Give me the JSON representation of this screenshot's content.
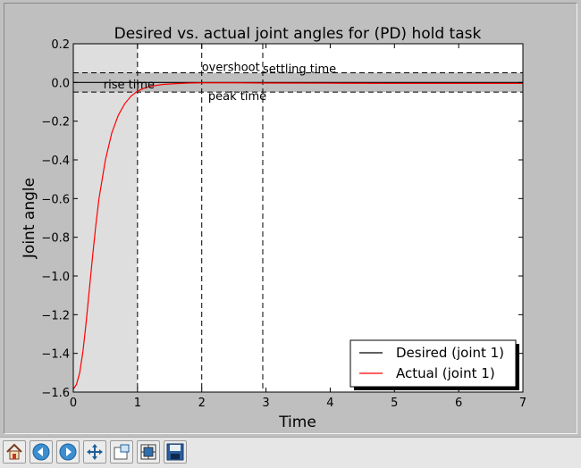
{
  "chart_data": {
    "type": "line",
    "title": "Desired vs. actual joint angles for (PD) hold task",
    "xlabel": "Time",
    "ylabel": "Joint angle",
    "xlim": [
      0,
      7
    ],
    "ylim": [
      -1.6,
      0.2
    ],
    "xticks": [
      "0",
      "1",
      "2",
      "3",
      "4",
      "5",
      "6",
      "7"
    ],
    "yticks": [
      "0.2",
      "0.0",
      "−0.2",
      "−0.4",
      "−0.6",
      "−0.8",
      "−1.0",
      "−1.2",
      "−1.4",
      "−1.6"
    ],
    "grid": false,
    "legend_position": "lower-right",
    "series": [
      {
        "name": "Desired (joint 1)",
        "color": "#000000",
        "x": [
          0,
          7
        ],
        "y": [
          0.0,
          0.0
        ]
      },
      {
        "name": "Actual (joint 1)",
        "color": "#ff0000",
        "x": [
          0,
          0.05,
          0.1,
          0.15,
          0.2,
          0.25,
          0.3,
          0.35,
          0.4,
          0.5,
          0.6,
          0.7,
          0.8,
          0.9,
          1.0,
          1.1,
          1.2,
          1.4,
          1.6,
          1.8,
          2.0,
          2.5,
          3.0,
          4.0,
          5.0,
          6.0,
          7.0
        ],
        "y": [
          -1.585,
          -1.56,
          -1.5,
          -1.39,
          -1.24,
          -1.07,
          -0.9,
          -0.74,
          -0.6,
          -0.4,
          -0.26,
          -0.17,
          -0.11,
          -0.07,
          -0.045,
          -0.03,
          -0.02,
          -0.01,
          -0.006,
          -0.003,
          -0.002,
          -0.002,
          -0.003,
          -0.004,
          -0.005,
          -0.005,
          -0.005
        ]
      }
    ],
    "shaded_band": {
      "y_from": -0.05,
      "y_to": 0.05,
      "color": "#bfbfbf",
      "edge": "dashed"
    },
    "shaded_region": {
      "x_from": 0,
      "x_to": 1.0,
      "color": "#dedede"
    },
    "vlines": [
      1.0,
      2.0,
      2.95
    ],
    "annotations": [
      {
        "text": "rise time",
        "x": 0.47,
        "y": -0.03
      },
      {
        "text": "overshoot",
        "x": 2.0,
        "y": 0.06
      },
      {
        "text": "settling time",
        "x": 2.95,
        "y": 0.05
      },
      {
        "text": "peak time",
        "x": 2.1,
        "y": -0.09
      }
    ]
  },
  "toolbar": {
    "buttons": [
      {
        "name": "home-icon"
      },
      {
        "name": "back-icon"
      },
      {
        "name": "forward-icon"
      },
      {
        "name": "pan-icon"
      },
      {
        "name": "zoom-rect-icon"
      },
      {
        "name": "subplots-icon"
      },
      {
        "name": "save-icon"
      }
    ]
  }
}
